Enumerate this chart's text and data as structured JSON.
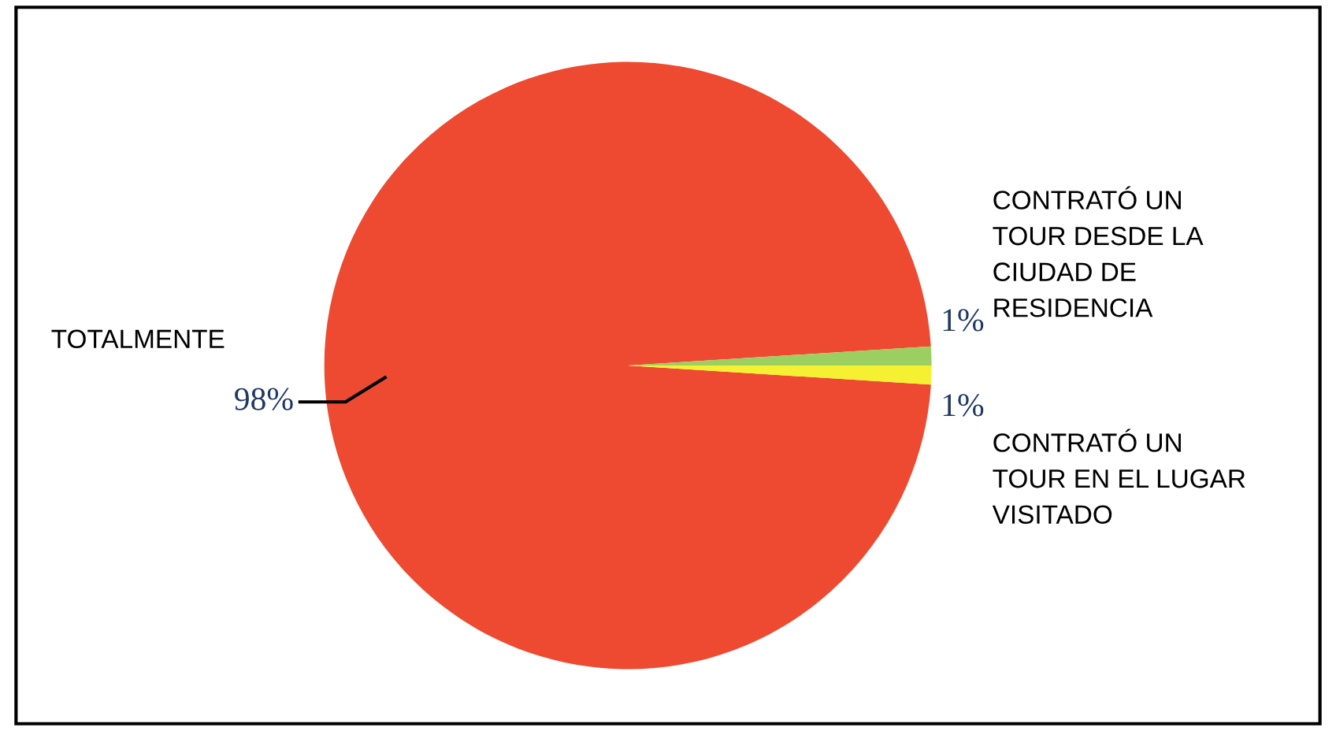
{
  "chart_data": {
    "type": "pie",
    "categories": [
      "TOTALMENTE",
      "CONTRATÓ UN\nTOUR DESDE LA\nCIUDAD DE\nRESIDENCIA",
      "CONTRATÓ UN\nTOUR EN EL LUGAR\nVISITADO"
    ],
    "values": [
      98,
      1,
      1
    ],
    "colors": [
      "#ee4a31",
      "#9bd060",
      "#f5f032"
    ],
    "value_labels": [
      "98%",
      "1%",
      "1%"
    ],
    "legend": false
  }
}
